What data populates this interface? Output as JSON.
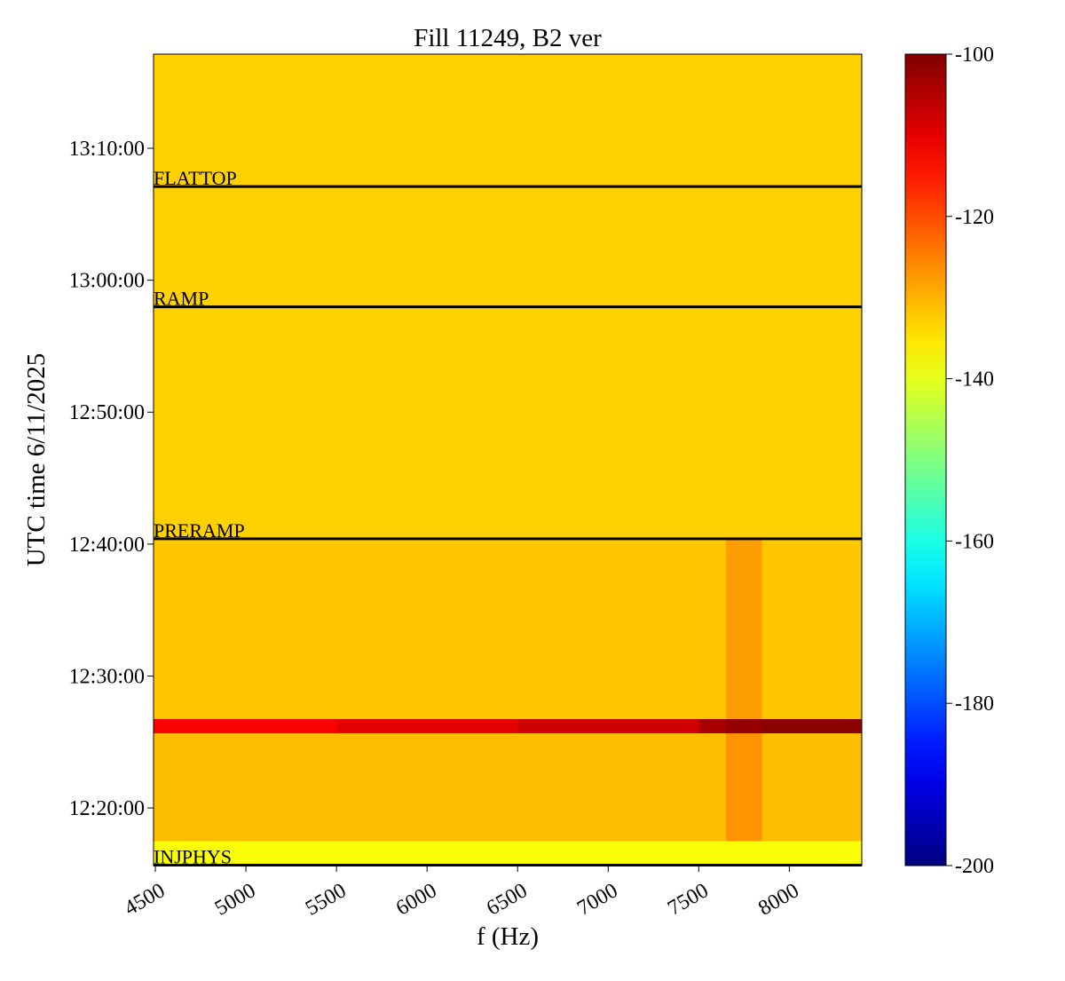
{
  "chart_data": {
    "type": "heatmap",
    "title": "Fill 11249, B2 ver",
    "x_label": "f (Hz)",
    "y_label": "UTC time 6/11/2025",
    "xlim": [
      4490,
      8400
    ],
    "xticks": [
      4500,
      5000,
      5500,
      6000,
      6500,
      7000,
      7500,
      8000
    ],
    "ylim": [
      44138,
      47828
    ],
    "yticks": [
      {
        "value": 44400,
        "label": "12:20:00"
      },
      {
        "value": 45000,
        "label": "12:30:00"
      },
      {
        "value": 45600,
        "label": "12:40:00"
      },
      {
        "value": 46200,
        "label": "12:50:00"
      },
      {
        "value": 46800,
        "label": "13:00:00"
      },
      {
        "value": 47400,
        "label": "13:10:00"
      }
    ],
    "x_bins": [
      4490,
      5500,
      6500,
      7500,
      7650,
      7850,
      8400
    ],
    "y_bins": [
      44138,
      44250,
      44739,
      44804,
      45624,
      47828
    ],
    "z": [
      [
        -138,
        -138,
        -138,
        -138,
        -138,
        -138
      ],
      [
        -131,
        -131,
        -131,
        -131,
        -127,
        -131
      ],
      [
        -112,
        -110,
        -108,
        -104,
        -102,
        -101
      ],
      [
        -132,
        -132,
        -132,
        -132,
        -128,
        -132
      ],
      [
        -133,
        -133,
        -133,
        -133,
        -133,
        -133
      ]
    ],
    "colormap": "jet",
    "clim": [
      -200,
      -100
    ],
    "cticks": [
      -200,
      -180,
      -160,
      -140,
      -120,
      -100
    ],
    "events": [
      {
        "label": "FLATTOP",
        "time": 47226
      },
      {
        "label": "RAMP",
        "time": 46679
      },
      {
        "label": "PRERAMP",
        "time": 45624
      },
      {
        "label": "INJPHYS",
        "time": 44140
      }
    ],
    "event_color": "#000000"
  }
}
